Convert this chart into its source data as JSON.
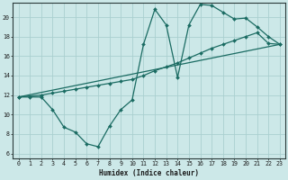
{
  "xlabel": "Humidex (Indice chaleur)",
  "xlim": [
    -0.5,
    23.5
  ],
  "ylim": [
    5.5,
    21.5
  ],
  "yticks": [
    6,
    8,
    10,
    12,
    14,
    16,
    18,
    20
  ],
  "xticks": [
    0,
    1,
    2,
    3,
    4,
    5,
    6,
    7,
    8,
    9,
    10,
    11,
    12,
    13,
    14,
    15,
    16,
    17,
    18,
    19,
    20,
    21,
    22,
    23
  ],
  "bg_color": "#cce8e8",
  "grid_color": "#aacfcf",
  "line_color": "#1a6b62",
  "line1_x": [
    0,
    1,
    2,
    3,
    4,
    5,
    6,
    7,
    8,
    9,
    10,
    11,
    12,
    13,
    14,
    15,
    16,
    17,
    18,
    19,
    20,
    21,
    22,
    23
  ],
  "line1_y": [
    11.8,
    11.8,
    11.8,
    10.5,
    8.7,
    8.2,
    7.0,
    6.7,
    8.8,
    10.5,
    11.5,
    17.2,
    20.8,
    19.2,
    13.8,
    19.2,
    21.3,
    21.2,
    20.5,
    19.8,
    19.9,
    19.0,
    18.0,
    17.2
  ],
  "line2_x": [
    0,
    2,
    3,
    4,
    5,
    6,
    7,
    8,
    9,
    10,
    11,
    12,
    13,
    14,
    15,
    16,
    17,
    18,
    19,
    20,
    21,
    22,
    23
  ],
  "line2_y": [
    11.8,
    12.0,
    12.2,
    12.4,
    12.6,
    12.8,
    13.0,
    13.2,
    13.4,
    13.6,
    14.0,
    14.5,
    14.9,
    15.3,
    15.8,
    16.3,
    16.8,
    17.2,
    17.6,
    18.0,
    18.4,
    17.3,
    17.2
  ],
  "line3_x": [
    0,
    23
  ],
  "line3_y": [
    11.8,
    17.2
  ]
}
